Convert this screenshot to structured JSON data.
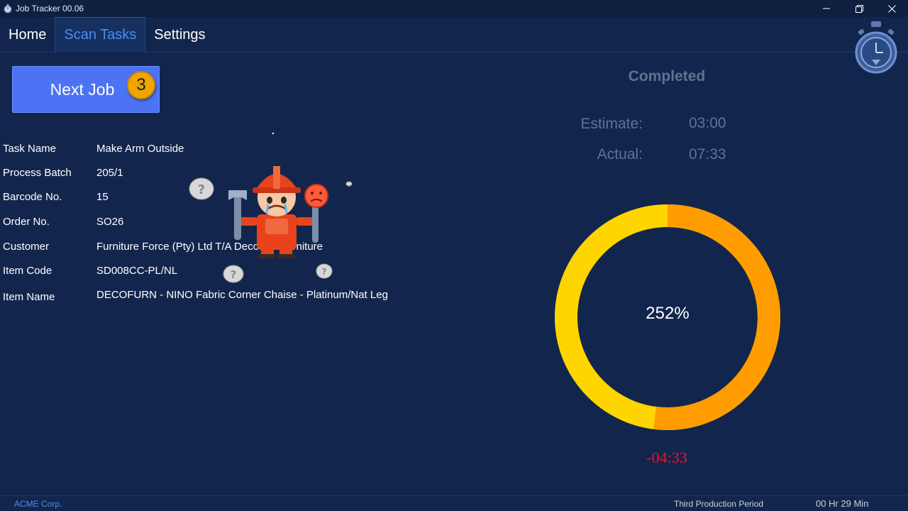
{
  "window": {
    "title": "Job Tracker 00.06",
    "minimize": "—",
    "restore": "❐",
    "close": "✕"
  },
  "tabs": [
    {
      "label": "Home",
      "active": false
    },
    {
      "label": "Scan Tasks",
      "active": true
    },
    {
      "label": "Settings",
      "active": false
    }
  ],
  "next_job": {
    "label": "Next Job",
    "count": "3"
  },
  "details": [
    {
      "label": "Task Name",
      "value": "Make Arm Outside"
    },
    {
      "label": "Process Batch",
      "value": "205/1"
    },
    {
      "label": "Barcode No.",
      "value": "15"
    },
    {
      "label": "Order No.",
      "value": "SO26"
    },
    {
      "label": "Customer",
      "value": "Furniture Force (Pty) Ltd T/A Decofurn Furniture"
    },
    {
      "label": "Item Code",
      "value": "SD008CC-PL/NL"
    },
    {
      "label": "Item Name",
      "value": "DECOFURN - NINO Fabric Corner Chaise - Platinum/Nat Leg"
    }
  ],
  "timing": {
    "status": "Completed",
    "estimate_label": "Estimate:",
    "estimate_value": "03:00",
    "actual_label": "Actual:",
    "actual_value": "07:33",
    "percent": "252%",
    "overrun": "-04:33"
  },
  "colors": {
    "ring_yellow": "#ffd500",
    "ring_orange": "#ff9d00",
    "accent": "#4b8df0",
    "overrun": "#e8142a"
  },
  "status_bar": {
    "company": "ACME Corp.",
    "period": "Third Production Period",
    "duration": "00 Hr 29 Min"
  }
}
